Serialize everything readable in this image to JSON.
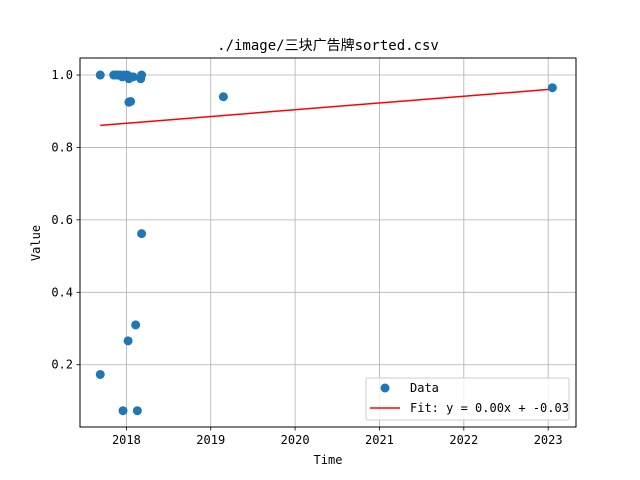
{
  "chart_data": {
    "type": "scatter",
    "title": "./image/三块广告牌sorted.csv",
    "xlabel": "Time",
    "ylabel": "Value",
    "xlim": [
      2017.45,
      2023.33
    ],
    "ylim": [
      0.028,
      1.047
    ],
    "xticks": [
      2018,
      2019,
      2020,
      2021,
      2022,
      2023
    ],
    "xtick_labels": [
      "2018",
      "2019",
      "2020",
      "2021",
      "2022",
      "2023"
    ],
    "yticks": [
      0.2,
      0.4,
      0.6,
      0.8,
      1.0
    ],
    "ytick_labels": [
      "0.2",
      "0.4",
      "0.6",
      "0.8",
      "1.0"
    ],
    "grid": true,
    "legend_position": "lower-right",
    "colors": {
      "points": "#1f77b4",
      "fit": "#ff0000",
      "grid": "#b0b0b0"
    },
    "series": [
      {
        "name": "Data",
        "kind": "scatter",
        "points": [
          {
            "x": 2017.69,
            "y": 1.0
          },
          {
            "x": 2017.85,
            "y": 1.0
          },
          {
            "x": 2017.88,
            "y": 1.0
          },
          {
            "x": 2017.9,
            "y": 1.0
          },
          {
            "x": 2017.93,
            "y": 1.0
          },
          {
            "x": 2017.95,
            "y": 0.995
          },
          {
            "x": 2017.97,
            "y": 1.0
          },
          {
            "x": 2018.01,
            "y": 1.0
          },
          {
            "x": 2018.03,
            "y": 0.99
          },
          {
            "x": 2018.05,
            "y": 0.995
          },
          {
            "x": 2018.08,
            "y": 0.995
          },
          {
            "x": 2018.17,
            "y": 0.99
          },
          {
            "x": 2018.18,
            "y": 1.0
          },
          {
            "x": 2018.03,
            "y": 0.925
          },
          {
            "x": 2018.05,
            "y": 0.927
          },
          {
            "x": 2019.15,
            "y": 0.94
          },
          {
            "x": 2023.05,
            "y": 0.965
          },
          {
            "x": 2018.18,
            "y": 0.562
          },
          {
            "x": 2018.11,
            "y": 0.31
          },
          {
            "x": 2018.02,
            "y": 0.266
          },
          {
            "x": 2017.69,
            "y": 0.173
          },
          {
            "x": 2017.96,
            "y": 0.073
          },
          {
            "x": 2018.13,
            "y": 0.073
          }
        ]
      },
      {
        "name": "Fit: y = 0.00x + -0.03",
        "kind": "line",
        "points": [
          {
            "x": 2017.69,
            "y": 0.861
          },
          {
            "x": 2023.05,
            "y": 0.961
          }
        ]
      }
    ]
  }
}
